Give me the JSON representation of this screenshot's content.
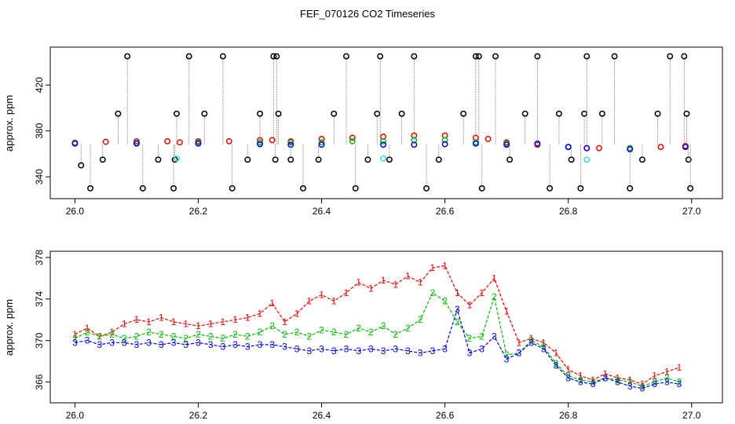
{
  "title": "FEF_070126  CO2 Timeseries",
  "colors": {
    "series1": "#ff0000",
    "series2": "#00c000",
    "series3": "#0000ff",
    "raw": "#000000",
    "flag": "#33e0e0",
    "line": "#888888"
  },
  "chart_data": [
    {
      "type": "scatter",
      "ylabel": "approx. ppm",
      "xlim": [
        25.96,
        27.05
      ],
      "ylim": [
        321,
        453
      ],
      "xticks": [
        "26.0",
        "26.2",
        "26.4",
        "26.6",
        "26.8",
        "27.0"
      ],
      "xtick_values": [
        26.0,
        26.2,
        26.4,
        26.6,
        26.8,
        27.0
      ],
      "yticks": [
        "340",
        "380",
        "420"
      ],
      "ytick_values": [
        340,
        380,
        420
      ],
      "series": [
        {
          "marker": "o",
          "color": "#ff0000",
          "x": [
            26.0,
            26.05,
            26.1,
            26.15,
            26.17,
            26.2,
            26.25,
            26.3,
            26.32,
            26.35,
            26.4,
            26.45,
            26.5,
            26.55,
            26.6,
            26.65,
            26.67,
            26.7,
            26.75,
            26.8,
            26.83,
            26.85,
            26.9,
            26.95,
            26.99
          ],
          "y": [
            369.8,
            370.5,
            371,
            371,
            370,
            371,
            371,
            372,
            372,
            371,
            373,
            374,
            375,
            376,
            376,
            374,
            373,
            370,
            368,
            366,
            365,
            365,
            365,
            366,
            367
          ]
        },
        {
          "marker": "o",
          "color": "#00c000",
          "x": [
            26.0,
            26.1,
            26.2,
            26.3,
            26.35,
            26.4,
            26.45,
            26.5,
            26.55,
            26.6,
            26.65,
            26.7,
            26.8,
            26.9,
            26.99
          ],
          "y": [
            369.5,
            369.5,
            370,
            370,
            370,
            370,
            371,
            371,
            372,
            372,
            370,
            369,
            366,
            365,
            366
          ]
        },
        {
          "marker": "o",
          "color": "#0000ff",
          "x": [
            26.0,
            26.1,
            26.2,
            26.3,
            26.35,
            26.4,
            26.5,
            26.55,
            26.6,
            26.65,
            26.7,
            26.75,
            26.8,
            26.83,
            26.9,
            26.99
          ],
          "y": [
            369,
            369,
            369,
            368.5,
            368,
            368,
            368,
            368,
            368.5,
            369,
            368,
            369,
            366,
            365,
            364,
            366
          ]
        },
        {
          "marker": "o",
          "color": "#000000",
          "x": [
            26.01,
            26.025,
            26.045,
            26.07,
            26.085,
            26.11,
            26.135,
            26.16,
            26.162,
            26.165,
            26.185,
            26.21,
            26.24,
            26.255,
            26.28,
            26.3,
            26.322,
            26.325,
            26.327,
            26.33,
            26.35,
            26.37,
            26.395,
            26.42,
            26.44,
            26.455,
            26.475,
            26.49,
            26.495,
            26.51,
            26.53,
            26.55,
            26.57,
            26.59,
            26.63,
            26.65,
            26.655,
            26.66,
            26.682,
            26.705,
            26.73,
            26.75,
            26.77,
            26.785,
            26.805,
            26.82,
            26.826,
            26.83,
            26.855,
            26.875,
            26.9,
            26.92,
            26.945,
            26.965,
            26.988,
            26.992,
            26.995,
            26.998
          ],
          "y": [
            350,
            330,
            355,
            395,
            445,
            330,
            355,
            330,
            355,
            395,
            445,
            395,
            445,
            330,
            355,
            395,
            445,
            355,
            445,
            395,
            355,
            330,
            355,
            395,
            445,
            330,
            355,
            395,
            445,
            355,
            395,
            445,
            330,
            355,
            395,
            445,
            445,
            330,
            445,
            355,
            395,
            445,
            330,
            395,
            355,
            330,
            395,
            445,
            395,
            445,
            330,
            355,
            395,
            445,
            445,
            395,
            355,
            330
          ]
        },
        {
          "marker": "o",
          "color": "#33e0e0",
          "x": [
            26.165,
            26.5,
            26.83
          ],
          "y": [
            356,
            356,
            355
          ]
        }
      ]
    },
    {
      "type": "line",
      "ylabel": "approx. ppm",
      "xlim": [
        25.96,
        27.05
      ],
      "ylim": [
        364,
        378.6
      ],
      "xticks": [
        "26.0",
        "26.2",
        "26.4",
        "26.6",
        "26.8",
        "27.0"
      ],
      "xtick_values": [
        26.0,
        26.2,
        26.4,
        26.6,
        26.8,
        27.0
      ],
      "yticks": [
        "366",
        "370",
        "374",
        "378"
      ],
      "ytick_values": [
        366,
        370,
        374,
        378
      ],
      "series": [
        {
          "marker": "1",
          "color": "#ff0000",
          "x": [
            26.0,
            26.02,
            26.04,
            26.06,
            26.08,
            26.1,
            26.12,
            26.14,
            26.16,
            26.18,
            26.2,
            26.22,
            26.24,
            26.26,
            26.28,
            26.3,
            26.32,
            26.34,
            26.36,
            26.38,
            26.4,
            26.42,
            26.44,
            26.46,
            26.48,
            26.5,
            26.52,
            26.54,
            26.56,
            26.58,
            26.6,
            26.62,
            26.64,
            26.66,
            26.68,
            26.7,
            26.72,
            26.74,
            26.76,
            26.78,
            26.8,
            26.82,
            26.84,
            26.86,
            26.88,
            26.9,
            26.92,
            26.94,
            26.96,
            26.98
          ],
          "y": [
            370.6,
            371.2,
            370.4,
            370.8,
            371.6,
            372.0,
            371.8,
            372.2,
            371.8,
            371.6,
            371.4,
            371.6,
            371.8,
            372.0,
            372.2,
            372.6,
            373.6,
            371.8,
            372.6,
            373.8,
            374.4,
            373.8,
            374.6,
            375.6,
            375.0,
            375.8,
            375.4,
            376.2,
            375.6,
            377.0,
            377.2,
            374.6,
            373.4,
            374.6,
            376.0,
            372.8,
            369.8,
            370.2,
            369.8,
            368.8,
            367.2,
            366.6,
            366.2,
            366.8,
            366.4,
            366.2,
            365.8,
            366.6,
            367.0,
            367.4
          ]
        },
        {
          "marker": "2",
          "color": "#00c000",
          "x": [
            26.0,
            26.02,
            26.04,
            26.06,
            26.08,
            26.1,
            26.12,
            26.14,
            26.16,
            26.18,
            26.2,
            26.22,
            26.24,
            26.26,
            26.28,
            26.3,
            26.32,
            26.34,
            26.36,
            26.38,
            26.4,
            26.42,
            26.44,
            26.46,
            26.48,
            26.5,
            26.52,
            26.54,
            26.56,
            26.58,
            26.6,
            26.62,
            26.64,
            26.66,
            26.68,
            26.7,
            26.72,
            26.74,
            26.76,
            26.78,
            26.8,
            26.82,
            26.84,
            26.86,
            26.88,
            26.9,
            26.92,
            26.94,
            26.96,
            26.98
          ],
          "y": [
            370.2,
            370.8,
            370.4,
            370.6,
            370.2,
            370.4,
            370.8,
            370.6,
            370.4,
            370.2,
            370.6,
            370.4,
            370.2,
            370.6,
            370.4,
            370.8,
            371.4,
            370.6,
            370.8,
            370.4,
            371.0,
            370.8,
            370.6,
            371.2,
            370.8,
            371.4,
            370.6,
            371.2,
            372.0,
            374.6,
            373.8,
            371.8,
            370.2,
            370.4,
            374.2,
            368.6,
            368.8,
            370.0,
            369.4,
            367.8,
            366.6,
            366.2,
            366.0,
            366.4,
            366.2,
            366.0,
            365.6,
            366.0,
            366.4,
            366.0
          ]
        },
        {
          "marker": "3",
          "color": "#0000ff",
          "x": [
            26.0,
            26.02,
            26.04,
            26.06,
            26.08,
            26.1,
            26.12,
            26.14,
            26.16,
            26.18,
            26.2,
            26.22,
            26.24,
            26.26,
            26.28,
            26.3,
            26.32,
            26.34,
            26.36,
            26.38,
            26.4,
            26.42,
            26.44,
            26.46,
            26.48,
            26.5,
            26.52,
            26.54,
            26.56,
            26.58,
            26.6,
            26.62,
            26.64,
            26.66,
            26.68,
            26.7,
            26.72,
            26.74,
            26.76,
            26.78,
            26.8,
            26.82,
            26.84,
            26.86,
            26.88,
            26.9,
            26.92,
            26.94,
            26.96,
            26.98
          ],
          "y": [
            369.8,
            370.0,
            369.6,
            369.8,
            369.8,
            369.6,
            369.8,
            369.6,
            369.8,
            369.6,
            369.8,
            369.6,
            369.4,
            369.6,
            369.4,
            369.6,
            369.6,
            369.4,
            369.2,
            369.0,
            369.2,
            369.0,
            369.2,
            369.0,
            369.2,
            369.0,
            369.2,
            369.0,
            368.8,
            369.0,
            369.2,
            373.0,
            368.8,
            369.2,
            370.4,
            368.2,
            368.8,
            369.8,
            369.2,
            367.6,
            366.4,
            366.0,
            365.8,
            366.4,
            366.0,
            365.6,
            365.4,
            365.8,
            366.0,
            365.8
          ]
        }
      ]
    }
  ]
}
